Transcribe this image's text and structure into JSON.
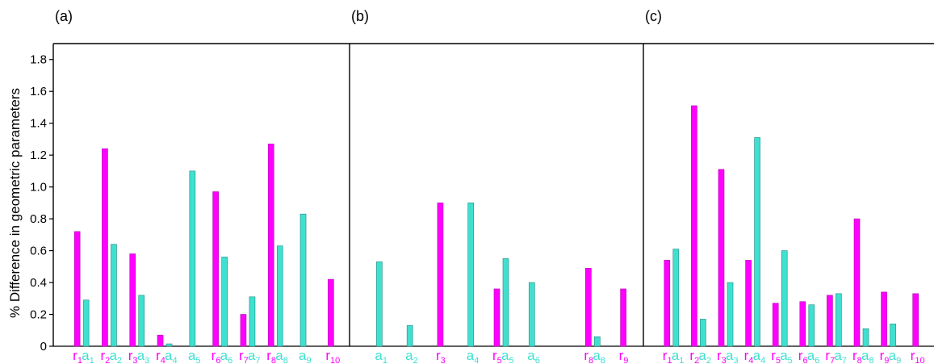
{
  "chart_data": {
    "type": "bar",
    "ylabel": "% Difference in geometric parameters",
    "ylim": [
      0,
      1.9
    ],
    "yticks": [
      0,
      0.2,
      0.4,
      0.6,
      0.8,
      1.0,
      1.2,
      1.4,
      1.6,
      1.8
    ],
    "ytick_labels": [
      "0",
      "0.2",
      "0.4",
      "0.6",
      "0.8",
      "1.0",
      "1.2",
      "1.4",
      "1.6",
      "1.8"
    ],
    "grid": false,
    "colors": {
      "r": "#ff00ff",
      "a": "#40e0d0",
      "r_edge": "#b000b0",
      "a_edge": "#1a8a80"
    },
    "panels": [
      {
        "label": "(a)",
        "groups": [
          {
            "bars": [
              {
                "kind": "r",
                "main": "r",
                "sub": "1",
                "value": 0.72
              },
              {
                "kind": "a",
                "main": "a",
                "sub": "1",
                "value": 0.29
              }
            ]
          },
          {
            "bars": [
              {
                "kind": "r",
                "main": "r",
                "sub": "2",
                "value": 1.24
              },
              {
                "kind": "a",
                "main": "a",
                "sub": "2",
                "value": 0.64
              }
            ]
          },
          {
            "bars": [
              {
                "kind": "r",
                "main": "r",
                "sub": "3",
                "value": 0.58
              },
              {
                "kind": "a",
                "main": "a",
                "sub": "3",
                "value": 0.32
              }
            ]
          },
          {
            "bars": [
              {
                "kind": "r",
                "main": "r",
                "sub": "4",
                "value": 0.07
              },
              {
                "kind": "a",
                "main": "a",
                "sub": "4",
                "value": 0.015
              }
            ]
          },
          {
            "bars": [
              {
                "kind": "a",
                "main": "a",
                "sub": "5",
                "value": 1.1
              }
            ]
          },
          {
            "bars": [
              {
                "kind": "r",
                "main": "r",
                "sub": "6",
                "value": 0.97
              },
              {
                "kind": "a",
                "main": "a",
                "sub": "6",
                "value": 0.56
              }
            ]
          },
          {
            "bars": [
              {
                "kind": "r",
                "main": "r",
                "sub": "7",
                "value": 0.2
              },
              {
                "kind": "a",
                "main": "a",
                "sub": "7",
                "value": 0.31
              }
            ]
          },
          {
            "bars": [
              {
                "kind": "r",
                "main": "r",
                "sub": "8",
                "value": 1.27
              },
              {
                "kind": "a",
                "main": "a",
                "sub": "8",
                "value": 0.63
              }
            ]
          },
          {
            "bars": [
              {
                "kind": "a",
                "main": "a",
                "sub": "9",
                "value": 0.83
              }
            ]
          },
          {
            "bars": [
              {
                "kind": "r",
                "main": "r",
                "sub": "10",
                "value": 0.42
              }
            ]
          }
        ]
      },
      {
        "label": "(b)",
        "groups": [
          {
            "bars": [
              {
                "kind": "a",
                "main": "a",
                "sub": "1",
                "value": 0.53
              }
            ]
          },
          {
            "bars": [
              {
                "kind": "a",
                "main": "a",
                "sub": "2",
                "value": 0.13
              }
            ]
          },
          {
            "bars": [
              {
                "kind": "r",
                "main": "r",
                "sub": "3",
                "value": 0.9
              }
            ]
          },
          {
            "bars": [
              {
                "kind": "a",
                "main": "a",
                "sub": "4",
                "value": 0.9
              }
            ]
          },
          {
            "bars": [
              {
                "kind": "r",
                "main": "r",
                "sub": "5",
                "value": 0.36
              },
              {
                "kind": "a",
                "main": "a",
                "sub": "5",
                "value": 0.55
              }
            ]
          },
          {
            "bars": [
              {
                "kind": "a",
                "main": "a",
                "sub": "6",
                "value": 0.4
              }
            ]
          },
          {
            "bars": []
          },
          {
            "bars": [
              {
                "kind": "r",
                "main": "r",
                "sub": "8",
                "value": 0.49
              },
              {
                "kind": "a",
                "main": "a",
                "sub": "8",
                "value": 0.06
              }
            ]
          },
          {
            "bars": [
              {
                "kind": "r",
                "main": "r",
                "sub": "9",
                "value": 0.36
              }
            ]
          }
        ]
      },
      {
        "label": "(c)",
        "groups": [
          {
            "bars": [
              {
                "kind": "r",
                "main": "r",
                "sub": "1",
                "value": 0.54
              },
              {
                "kind": "a",
                "main": "a",
                "sub": "1",
                "value": 0.61
              }
            ]
          },
          {
            "bars": [
              {
                "kind": "r",
                "main": "r",
                "sub": "2",
                "value": 1.51
              },
              {
                "kind": "a",
                "main": "a",
                "sub": "2",
                "value": 0.17
              }
            ]
          },
          {
            "bars": [
              {
                "kind": "r",
                "main": "r",
                "sub": "3",
                "value": 1.11
              },
              {
                "kind": "a",
                "main": "a",
                "sub": "3",
                "value": 0.4
              }
            ]
          },
          {
            "bars": [
              {
                "kind": "r",
                "main": "r",
                "sub": "4",
                "value": 0.54
              },
              {
                "kind": "a",
                "main": "a",
                "sub": "4",
                "value": 1.31
              }
            ]
          },
          {
            "bars": [
              {
                "kind": "r",
                "main": "r",
                "sub": "5",
                "value": 0.27
              },
              {
                "kind": "a",
                "main": "a",
                "sub": "5",
                "value": 0.6
              }
            ]
          },
          {
            "bars": [
              {
                "kind": "r",
                "main": "r",
                "sub": "6",
                "value": 0.28
              },
              {
                "kind": "a",
                "main": "a",
                "sub": "6",
                "value": 0.26
              }
            ]
          },
          {
            "bars": [
              {
                "kind": "r",
                "main": "r",
                "sub": "7",
                "value": 0.32
              },
              {
                "kind": "a",
                "main": "a",
                "sub": "7",
                "value": 0.33
              }
            ]
          },
          {
            "bars": [
              {
                "kind": "r",
                "main": "r",
                "sub": "8",
                "value": 0.8
              },
              {
                "kind": "a",
                "main": "a",
                "sub": "8",
                "value": 0.11
              }
            ]
          },
          {
            "bars": [
              {
                "kind": "r",
                "main": "r",
                "sub": "9",
                "value": 0.34
              },
              {
                "kind": "a",
                "main": "a",
                "sub": "9",
                "value": 0.14
              }
            ]
          },
          {
            "bars": [
              {
                "kind": "r",
                "main": "r",
                "sub": "10",
                "value": 0.33
              }
            ]
          }
        ]
      }
    ]
  }
}
